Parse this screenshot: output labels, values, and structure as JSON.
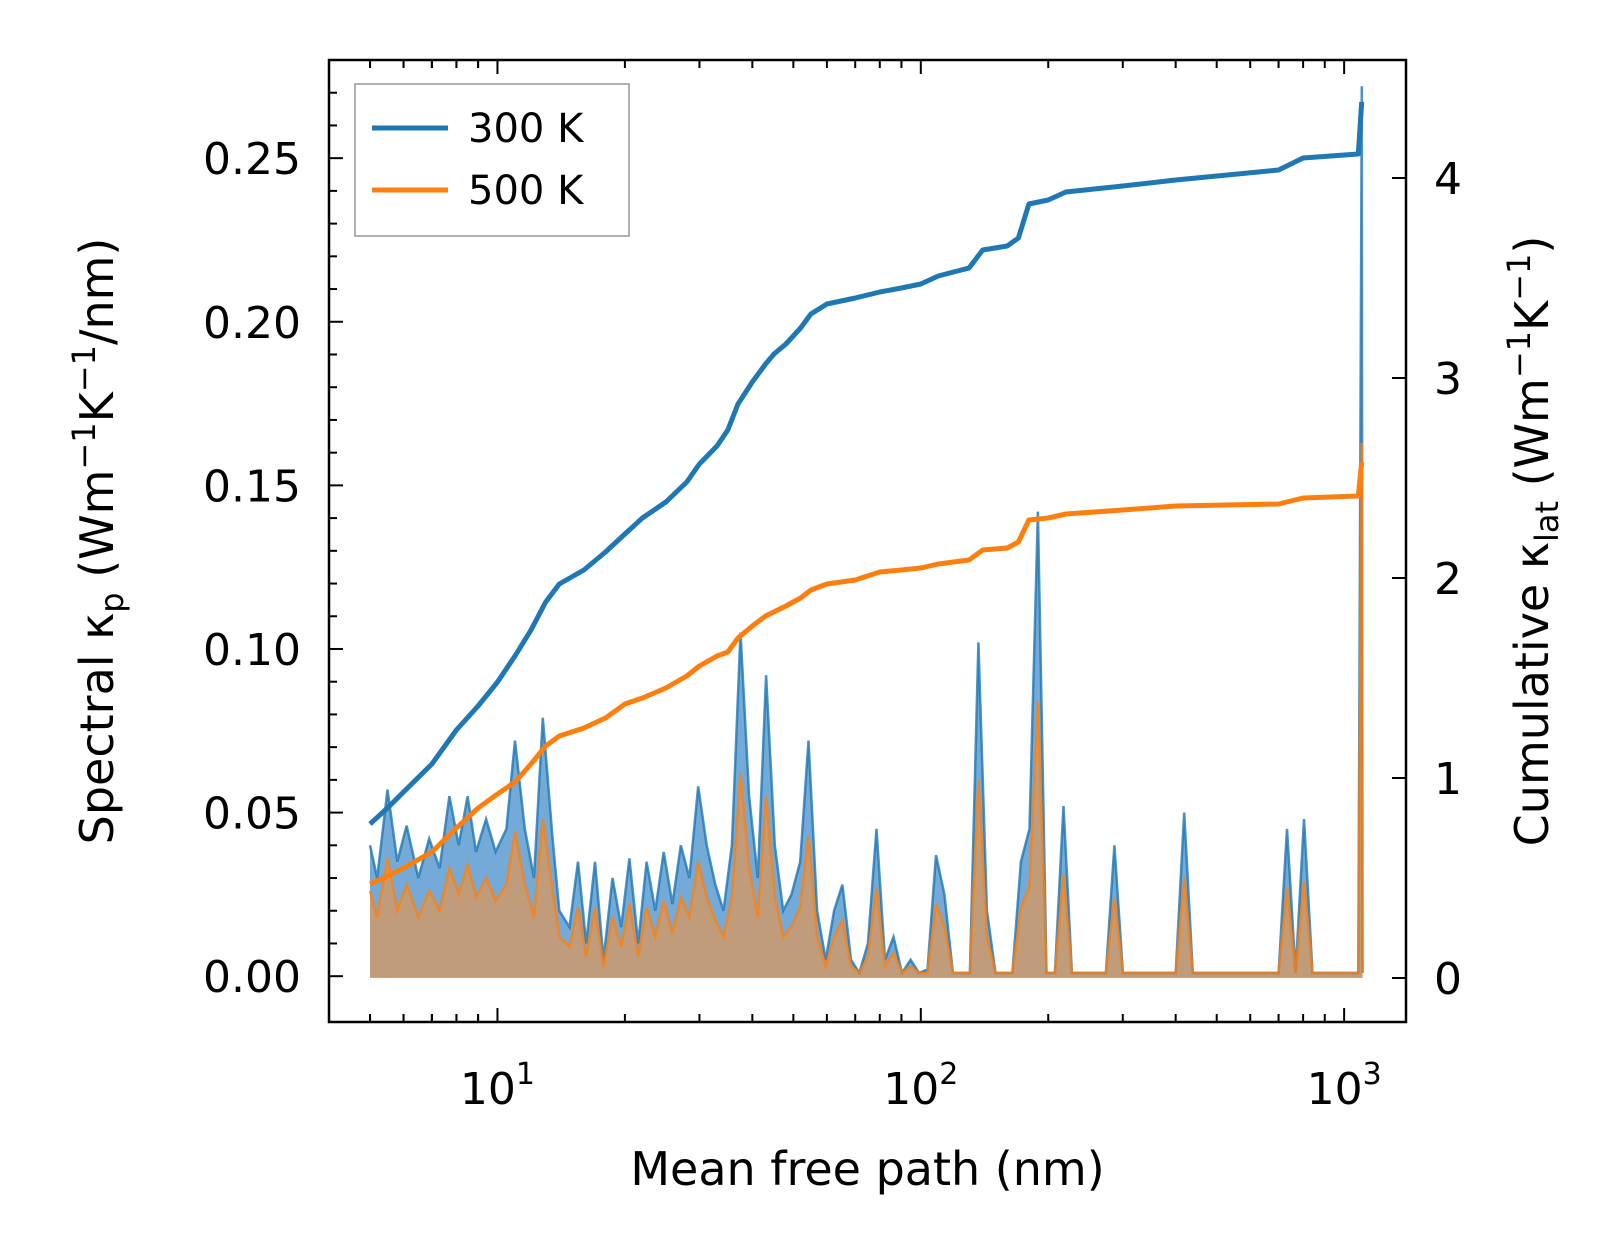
{
  "chart_data": {
    "type": "line",
    "xlabel": "Mean free path (nm)",
    "ylabel_left": {
      "main": "Spectral κ",
      "main_sub": "p",
      "unit_prefix": " (Wm",
      "unit_sup1": "−1",
      "unit_mid": "K",
      "unit_sup2": "−1",
      "unit_suffix": "/nm)"
    },
    "ylabel_right": {
      "main": "Cumulative κ",
      "main_sub": "lat",
      "unit_prefix": " (Wm",
      "unit_sup1": "−1",
      "unit_mid": "K",
      "unit_sup2": "−1",
      "unit_suffix": ")"
    },
    "x_scale": "log",
    "xlim": [
      4.0,
      1400
    ],
    "ylim_left": [
      -0.014,
      0.28
    ],
    "ylim_right": [
      -0.22,
      4.59
    ],
    "x_ticks": [
      {
        "value": 10,
        "base": "10",
        "exp": "1"
      },
      {
        "value": 100,
        "base": "10",
        "exp": "2"
      },
      {
        "value": 1000,
        "base": "10",
        "exp": "3"
      }
    ],
    "y_ticks_left": [
      {
        "value": 0.0,
        "label": "0.00"
      },
      {
        "value": 0.05,
        "label": "0.05"
      },
      {
        "value": 0.1,
        "label": "0.10"
      },
      {
        "value": 0.15,
        "label": "0.15"
      },
      {
        "value": 0.2,
        "label": "0.20"
      },
      {
        "value": 0.25,
        "label": "0.25"
      }
    ],
    "y_ticks_right": [
      {
        "value": 0,
        "label": "0"
      },
      {
        "value": 1,
        "label": "1"
      },
      {
        "value": 2,
        "label": "2"
      },
      {
        "value": 3,
        "label": "3"
      },
      {
        "value": 4,
        "label": "4"
      }
    ],
    "legend": {
      "placement": "top-left",
      "entries": [
        "300 K",
        "500 K"
      ]
    },
    "series": [
      {
        "name": "300 K",
        "color": "#1f77b4",
        "fill_color": "#5b9bd0",
        "cumulative": [
          [
            5.0,
            0.77
          ],
          [
            5.5,
            0.85
          ],
          [
            6,
            0.93
          ],
          [
            7,
            1.07
          ],
          [
            8,
            1.24
          ],
          [
            9,
            1.36
          ],
          [
            10,
            1.48
          ],
          [
            11,
            1.61
          ],
          [
            12,
            1.74
          ],
          [
            13,
            1.88
          ],
          [
            14,
            1.97
          ],
          [
            16,
            2.04
          ],
          [
            18,
            2.13
          ],
          [
            20,
            2.22
          ],
          [
            22,
            2.3
          ],
          [
            25,
            2.38
          ],
          [
            28,
            2.48
          ],
          [
            30,
            2.57
          ],
          [
            33,
            2.66
          ],
          [
            35,
            2.74
          ],
          [
            37,
            2.87
          ],
          [
            40,
            2.98
          ],
          [
            43,
            3.07
          ],
          [
            45,
            3.12
          ],
          [
            48,
            3.17
          ],
          [
            52,
            3.25
          ],
          [
            55,
            3.32
          ],
          [
            60,
            3.37
          ],
          [
            70,
            3.4
          ],
          [
            80,
            3.43
          ],
          [
            90,
            3.45
          ],
          [
            100,
            3.47
          ],
          [
            110,
            3.51
          ],
          [
            130,
            3.55
          ],
          [
            140,
            3.64
          ],
          [
            160,
            3.66
          ],
          [
            170,
            3.7
          ],
          [
            180,
            3.87
          ],
          [
            200,
            3.89
          ],
          [
            220,
            3.93
          ],
          [
            300,
            3.96
          ],
          [
            400,
            3.99
          ],
          [
            700,
            4.04
          ],
          [
            800,
            4.1
          ],
          [
            1080,
            4.12
          ],
          [
            1100,
            4.38
          ]
        ],
        "spectral": [
          [
            5.0,
            0.04
          ],
          [
            5.2,
            0.03
          ],
          [
            5.5,
            0.057
          ],
          [
            5.8,
            0.035
          ],
          [
            6.1,
            0.046
          ],
          [
            6.5,
            0.03
          ],
          [
            6.9,
            0.042
          ],
          [
            7.3,
            0.033
          ],
          [
            7.7,
            0.055
          ],
          [
            8.1,
            0.04
          ],
          [
            8.5,
            0.055
          ],
          [
            8.9,
            0.038
          ],
          [
            9.4,
            0.048
          ],
          [
            9.9,
            0.038
          ],
          [
            10.5,
            0.045
          ],
          [
            11.0,
            0.072
          ],
          [
            11.6,
            0.045
          ],
          [
            12.2,
            0.03
          ],
          [
            12.8,
            0.079
          ],
          [
            13.5,
            0.042
          ],
          [
            14.0,
            0.02
          ],
          [
            14.8,
            0.015
          ],
          [
            15.5,
            0.035
          ],
          [
            16.2,
            0.01
          ],
          [
            17.0,
            0.035
          ],
          [
            17.8,
            0.005
          ],
          [
            18.7,
            0.03
          ],
          [
            19.6,
            0.015
          ],
          [
            20.5,
            0.036
          ],
          [
            21.5,
            0.01
          ],
          [
            22.5,
            0.035
          ],
          [
            23.6,
            0.02
          ],
          [
            24.7,
            0.038
          ],
          [
            25.9,
            0.022
          ],
          [
            27.1,
            0.04
          ],
          [
            28.4,
            0.03
          ],
          [
            29.8,
            0.058
          ],
          [
            31.2,
            0.04
          ],
          [
            32.7,
            0.028
          ],
          [
            34.2,
            0.02
          ],
          [
            35.8,
            0.04
          ],
          [
            37.5,
            0.105
          ],
          [
            39.3,
            0.055
          ],
          [
            41.2,
            0.03
          ],
          [
            43.1,
            0.092
          ],
          [
            45.2,
            0.04
          ],
          [
            47.3,
            0.02
          ],
          [
            49.5,
            0.025
          ],
          [
            51.9,
            0.035
          ],
          [
            54.3,
            0.072
          ],
          [
            56.9,
            0.02
          ],
          [
            59.6,
            0.005
          ],
          [
            62.4,
            0.02
          ],
          [
            65.3,
            0.028
          ],
          [
            68.4,
            0.005
          ],
          [
            71.6,
            0.001
          ],
          [
            75.0,
            0.01
          ],
          [
            78.6,
            0.045
          ],
          [
            82.3,
            0.005
          ],
          [
            86.2,
            0.012
          ],
          [
            90.3,
            0.001
          ],
          [
            94.6,
            0.005
          ],
          [
            99.0,
            0.001
          ],
          [
            103.7,
            0.002
          ],
          [
            108.6,
            0.037
          ],
          [
            113.7,
            0.025
          ],
          [
            119.1,
            0.001
          ],
          [
            124.7,
            0.001
          ],
          [
            130.6,
            0.001
          ],
          [
            136.8,
            0.102
          ],
          [
            143.3,
            0.02
          ],
          [
            150.1,
            0.001
          ],
          [
            157.2,
            0.001
          ],
          [
            164.6,
            0.001
          ],
          [
            172.4,
            0.035
          ],
          [
            180.6,
            0.045
          ],
          [
            189.1,
            0.142
          ],
          [
            198.1,
            0.001
          ],
          [
            207.4,
            0.001
          ],
          [
            217.3,
            0.052
          ],
          [
            227.5,
            0.001
          ],
          [
            238.3,
            0.001
          ],
          [
            249.6,
            0.001
          ],
          [
            261.4,
            0.001
          ],
          [
            273.7,
            0.001
          ],
          [
            286.7,
            0.04
          ],
          [
            300.2,
            0.001
          ],
          [
            400,
            0.001
          ],
          [
            419,
            0.05
          ],
          [
            439,
            0.001
          ],
          [
            700,
            0.001
          ],
          [
            733,
            0.045
          ],
          [
            768,
            0.001
          ],
          [
            804,
            0.048
          ],
          [
            842,
            0.001
          ],
          [
            1080,
            0.001
          ],
          [
            1101,
            0.272
          ],
          [
            1105,
            0.001
          ]
        ]
      },
      {
        "name": "500 K",
        "color": "#ff7f0e",
        "fill_color": "#c99a70",
        "cumulative": [
          [
            5.0,
            0.47
          ],
          [
            5.5,
            0.51
          ],
          [
            6,
            0.55
          ],
          [
            7,
            0.63
          ],
          [
            8,
            0.75
          ],
          [
            9,
            0.85
          ],
          [
            10,
            0.92
          ],
          [
            11,
            0.98
          ],
          [
            12,
            1.07
          ],
          [
            13,
            1.16
          ],
          [
            14,
            1.21
          ],
          [
            16,
            1.25
          ],
          [
            18,
            1.3
          ],
          [
            20,
            1.37
          ],
          [
            22,
            1.4
          ],
          [
            25,
            1.45
          ],
          [
            28,
            1.51
          ],
          [
            30,
            1.56
          ],
          [
            33,
            1.61
          ],
          [
            35,
            1.63
          ],
          [
            37,
            1.7
          ],
          [
            40,
            1.76
          ],
          [
            43,
            1.81
          ],
          [
            48,
            1.86
          ],
          [
            52,
            1.9
          ],
          [
            55,
            1.94
          ],
          [
            60,
            1.97
          ],
          [
            70,
            1.99
          ],
          [
            80,
            2.03
          ],
          [
            90,
            2.04
          ],
          [
            100,
            2.05
          ],
          [
            110,
            2.07
          ],
          [
            130,
            2.09
          ],
          [
            140,
            2.14
          ],
          [
            160,
            2.15
          ],
          [
            170,
            2.18
          ],
          [
            180,
            2.29
          ],
          [
            200,
            2.3
          ],
          [
            220,
            2.32
          ],
          [
            300,
            2.34
          ],
          [
            400,
            2.36
          ],
          [
            700,
            2.37
          ],
          [
            800,
            2.4
          ],
          [
            1080,
            2.41
          ],
          [
            1100,
            2.58
          ]
        ],
        "spectral": [
          [
            5.0,
            0.026
          ],
          [
            5.2,
            0.018
          ],
          [
            5.5,
            0.036
          ],
          [
            5.8,
            0.02
          ],
          [
            6.1,
            0.028
          ],
          [
            6.5,
            0.018
          ],
          [
            6.9,
            0.026
          ],
          [
            7.3,
            0.02
          ],
          [
            7.7,
            0.033
          ],
          [
            8.1,
            0.025
          ],
          [
            8.5,
            0.034
          ],
          [
            8.9,
            0.024
          ],
          [
            9.4,
            0.03
          ],
          [
            9.9,
            0.023
          ],
          [
            10.5,
            0.028
          ],
          [
            11.0,
            0.044
          ],
          [
            11.6,
            0.028
          ],
          [
            12.2,
            0.018
          ],
          [
            12.8,
            0.048
          ],
          [
            13.5,
            0.026
          ],
          [
            14.0,
            0.012
          ],
          [
            14.8,
            0.009
          ],
          [
            15.5,
            0.021
          ],
          [
            16.2,
            0.006
          ],
          [
            17.0,
            0.021
          ],
          [
            17.8,
            0.003
          ],
          [
            18.7,
            0.018
          ],
          [
            19.6,
            0.009
          ],
          [
            20.5,
            0.022
          ],
          [
            21.5,
            0.006
          ],
          [
            22.5,
            0.021
          ],
          [
            23.6,
            0.012
          ],
          [
            24.7,
            0.023
          ],
          [
            25.9,
            0.013
          ],
          [
            27.1,
            0.024
          ],
          [
            28.4,
            0.018
          ],
          [
            29.8,
            0.035
          ],
          [
            31.2,
            0.024
          ],
          [
            32.7,
            0.017
          ],
          [
            34.2,
            0.012
          ],
          [
            35.8,
            0.024
          ],
          [
            37.5,
            0.062
          ],
          [
            39.3,
            0.033
          ],
          [
            41.2,
            0.018
          ],
          [
            43.1,
            0.055
          ],
          [
            45.2,
            0.024
          ],
          [
            47.3,
            0.012
          ],
          [
            49.5,
            0.015
          ],
          [
            51.9,
            0.021
          ],
          [
            54.3,
            0.043
          ],
          [
            56.9,
            0.012
          ],
          [
            59.6,
            0.003
          ],
          [
            62.4,
            0.012
          ],
          [
            65.3,
            0.017
          ],
          [
            68.4,
            0.003
          ],
          [
            71.6,
            0.001
          ],
          [
            75.0,
            0.006
          ],
          [
            78.6,
            0.027
          ],
          [
            82.3,
            0.003
          ],
          [
            86.2,
            0.007
          ],
          [
            90.3,
            0.001
          ],
          [
            94.6,
            0.003
          ],
          [
            99.0,
            0.001
          ],
          [
            103.7,
            0.001
          ],
          [
            108.6,
            0.022
          ],
          [
            113.7,
            0.015
          ],
          [
            119.1,
            0.001
          ],
          [
            124.7,
            0.001
          ],
          [
            130.6,
            0.001
          ],
          [
            136.8,
            0.06
          ],
          [
            143.3,
            0.012
          ],
          [
            150.1,
            0.001
          ],
          [
            157.2,
            0.001
          ],
          [
            164.6,
            0.001
          ],
          [
            172.4,
            0.021
          ],
          [
            180.6,
            0.027
          ],
          [
            189.1,
            0.084
          ],
          [
            198.1,
            0.001
          ],
          [
            207.4,
            0.001
          ],
          [
            217.3,
            0.031
          ],
          [
            227.5,
            0.001
          ],
          [
            238.3,
            0.001
          ],
          [
            249.6,
            0.001
          ],
          [
            261.4,
            0.001
          ],
          [
            273.7,
            0.001
          ],
          [
            286.7,
            0.024
          ],
          [
            300.2,
            0.001
          ],
          [
            400,
            0.001
          ],
          [
            419,
            0.03
          ],
          [
            439,
            0.001
          ],
          [
            700,
            0.001
          ],
          [
            733,
            0.027
          ],
          [
            768,
            0.001
          ],
          [
            804,
            0.029
          ],
          [
            842,
            0.001
          ],
          [
            1080,
            0.001
          ],
          [
            1101,
            0.163
          ],
          [
            1105,
            0.001
          ]
        ]
      }
    ]
  }
}
